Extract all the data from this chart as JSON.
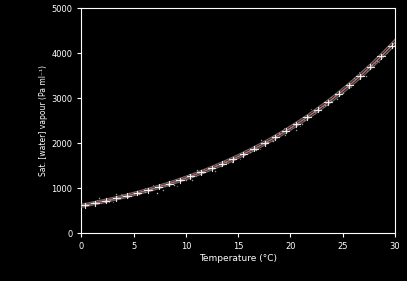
{
  "xlabel": "Temperature (°C)",
  "ylabel": "Sat. [water] vapour (Pa ml⁻¹)",
  "xlim": [
    0,
    30
  ],
  "ylim": [
    0,
    5000
  ],
  "xticks": [
    0,
    5,
    10,
    15,
    20,
    25,
    30
  ],
  "yticks": [
    0,
    1000,
    2000,
    3000,
    4000,
    5000
  ],
  "background_color": "#000000",
  "axes_color": "#000000",
  "text_color": "#ffffff",
  "spine_color": "#ffffff",
  "line_color": "#cc7777",
  "scatter_color": "#ffffff",
  "line_color2": "#999999",
  "noise_scale": 60,
  "n_scatter": 55,
  "n_ticks": 30,
  "figsize": [
    4.07,
    2.81
  ],
  "dpi": 100
}
